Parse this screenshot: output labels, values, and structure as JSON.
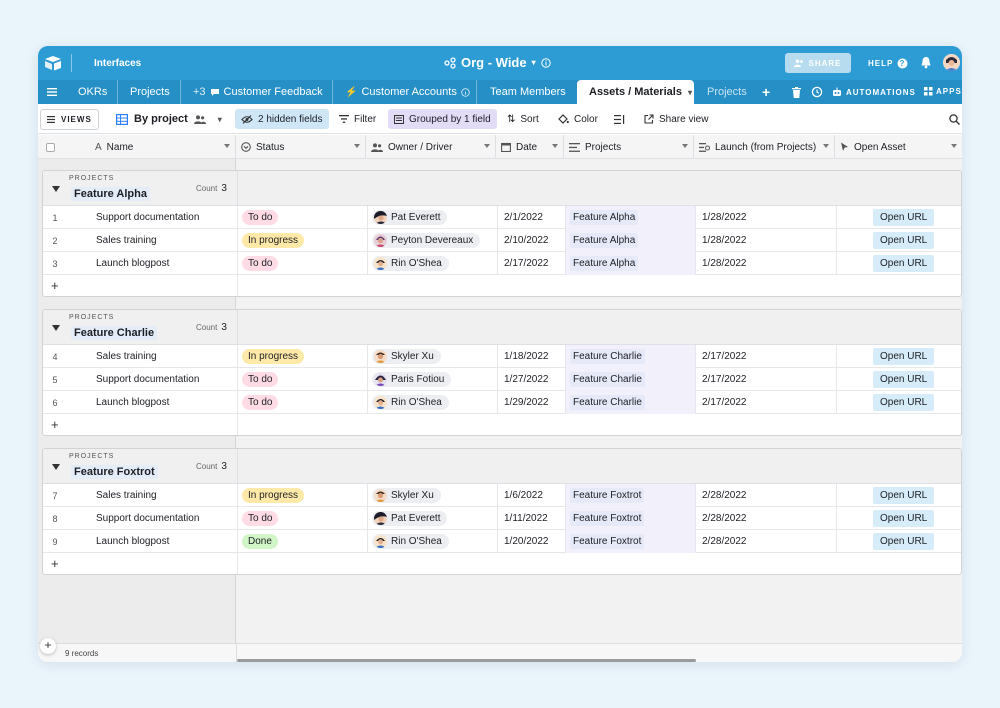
{
  "topbar": {
    "interfaces": "Interfaces",
    "base_name": "Org - Wide",
    "share": "SHARE",
    "help": "HELP",
    "brand_color": "#2d9bd4"
  },
  "tabs": [
    {
      "label": "OKRs"
    },
    {
      "label": "Projects"
    },
    {
      "label": "+3",
      "label2": "Customer Feedback"
    },
    {
      "label": "Customer Accounts"
    },
    {
      "label": "Team Members"
    },
    {
      "label": "Assets / Materials",
      "active": true
    },
    {
      "label": "Projects"
    }
  ],
  "tabbar_right": {
    "automations": "AUTOMATIONS",
    "apps": "APPS"
  },
  "toolbar": {
    "views": "VIEWS",
    "view_name": "By project",
    "hidden_fields": "2 hidden fields",
    "filter": "Filter",
    "grouped": "Grouped by 1 field",
    "sort": "Sort",
    "color": "Color",
    "share_view": "Share view"
  },
  "columns": {
    "name": "Name",
    "status": "Status",
    "owner": "Owner / Driver",
    "date": "Date",
    "projects": "Projects",
    "launch": "Launch (from Projects)",
    "open_asset": "Open Asset"
  },
  "group_field_label": "PROJECTS",
  "count_label": "Count",
  "groups": [
    {
      "name": "Feature Alpha",
      "count": "3",
      "rows": [
        {
          "n": "1",
          "name": "Support documentation",
          "status": "To do",
          "owner": "Pat Everett",
          "date": "2/1/2022",
          "project": "Feature Alpha",
          "launch": "1/28/2022",
          "asset": "Open URL"
        },
        {
          "n": "2",
          "name": "Sales training",
          "status": "In progress",
          "owner": "Peyton Devereaux",
          "date": "2/10/2022",
          "project": "Feature Alpha",
          "launch": "1/28/2022",
          "asset": "Open URL"
        },
        {
          "n": "3",
          "name": "Launch blogpost",
          "status": "To do",
          "owner": "Rin O'Shea",
          "date": "2/17/2022",
          "project": "Feature Alpha",
          "launch": "1/28/2022",
          "asset": "Open URL"
        }
      ]
    },
    {
      "name": "Feature Charlie",
      "count": "3",
      "rows": [
        {
          "n": "4",
          "name": "Sales training",
          "status": "In progress",
          "owner": "Skyler Xu",
          "date": "1/18/2022",
          "project": "Feature Charlie",
          "launch": "2/17/2022",
          "asset": "Open URL"
        },
        {
          "n": "5",
          "name": "Support documentation",
          "status": "To do",
          "owner": "Paris Fotiou",
          "date": "1/27/2022",
          "project": "Feature Charlie",
          "launch": "2/17/2022",
          "asset": "Open URL"
        },
        {
          "n": "6",
          "name": "Launch blogpost",
          "status": "To do",
          "owner": "Rin O'Shea",
          "date": "1/29/2022",
          "project": "Feature Charlie",
          "launch": "2/17/2022",
          "asset": "Open URL"
        }
      ]
    },
    {
      "name": "Feature Foxtrot",
      "count": "3",
      "rows": [
        {
          "n": "7",
          "name": "Sales training",
          "status": "In progress",
          "owner": "Skyler Xu",
          "date": "1/6/2022",
          "project": "Feature Foxtrot",
          "launch": "2/28/2022",
          "asset": "Open URL"
        },
        {
          "n": "8",
          "name": "Support documentation",
          "status": "To do",
          "owner": "Pat Everett",
          "date": "1/11/2022",
          "project": "Feature Foxtrot",
          "launch": "2/28/2022",
          "asset": "Open URL"
        },
        {
          "n": "9",
          "name": "Launch blogpost",
          "status": "Done",
          "owner": "Rin O'Shea",
          "date": "1/20/2022",
          "project": "Feature Foxtrot",
          "launch": "2/28/2022",
          "asset": "Open URL"
        }
      ]
    }
  ],
  "status_colors": {
    "To do": "#ffdce5",
    "In progress": "#ffe9a8",
    "Done": "#d1f5c7"
  },
  "footer": {
    "records": "9 records"
  }
}
